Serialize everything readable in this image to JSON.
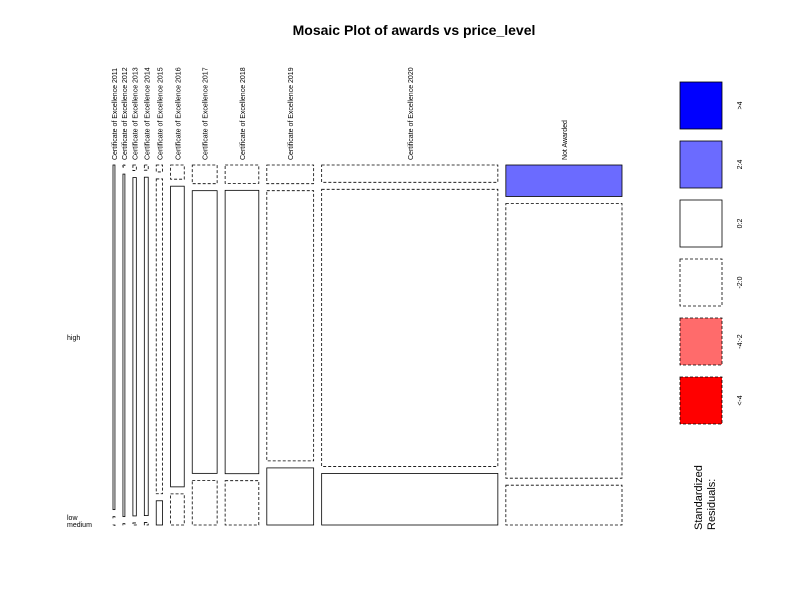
{
  "chart_data": {
    "type": "mosaic",
    "title": "Mosaic Plot of awards vs price_level",
    "x_variable": "awards",
    "y_variable": "price_level",
    "columns": [
      "Certificate of Excellence 2011",
      "Certificate of Excellence 2012",
      "Certificate of Excellence 2013",
      "Certificate of Excellence 2014",
      "Certificate of Excellence 2015",
      "Certificate of Excellence 2016",
      "Certificate of Excellence 2017",
      "Certificate of Excellence 2018",
      "Certificate of Excellence 2019",
      "Certificate of Excellence 2020",
      "Not Awarded"
    ],
    "column_widths": [
      0.004,
      0.004,
      0.007,
      0.008,
      0.013,
      0.028,
      0.051,
      0.069,
      0.096,
      0.361,
      0.238
    ],
    "rows": [
      "high",
      "low",
      "medium"
    ],
    "row_shares": [
      [
        0.996,
        0.0,
        0.004
      ],
      [
        0.006,
        0.004,
        0.99
      ],
      [
        0.016,
        0.006,
        0.978
      ],
      [
        0.015,
        0.007,
        0.978
      ],
      [
        0.02,
        0.07,
        0.91
      ],
      [
        0.041,
        0.09,
        0.869
      ],
      [
        0.054,
        0.129,
        0.817
      ],
      [
        0.053,
        0.128,
        0.819
      ],
      [
        0.054,
        0.165,
        0.781
      ],
      [
        0.05,
        0.149,
        0.801
      ],
      [
        0.091,
        0.115,
        0.794
      ]
    ],
    "residual_class": [
      [
        "0:2",
        "-2:0",
        "-2:0"
      ],
      [
        "-2:0",
        "-2:0",
        "0:2"
      ],
      [
        "-2:0",
        "-2:0",
        "0:2"
      ],
      [
        "-2:0",
        "-2:0",
        "0:2"
      ],
      [
        "-2:0",
        "0:2",
        "-2:0"
      ],
      [
        "-2:0",
        "-2:0",
        "0:2"
      ],
      [
        "-2:0",
        "-2:0",
        "0:2"
      ],
      [
        "-2:0",
        "-2:0",
        "0:2"
      ],
      [
        "-2:0",
        "0:2",
        "-2:0"
      ],
      [
        "-2:0",
        "0:2",
        "-2:0"
      ],
      [
        "2:4",
        "-2:0",
        "-2:0"
      ]
    ],
    "legend": {
      "title_lines": [
        "Standardized",
        "Residuals:"
      ],
      "items": [
        {
          "label": ">4",
          "fill": "#0000ff",
          "dashed": false
        },
        {
          "label": "2:4",
          "fill": "#6b6bff",
          "dashed": false
        },
        {
          "label": "0:2",
          "fill": "#ffffff",
          "dashed": false
        },
        {
          "label": "-2:0",
          "fill": "#ffffff",
          "dashed": true
        },
        {
          "label": "-4:-2",
          "fill": "#ff6b6b",
          "dashed": true
        },
        {
          "label": "<-4",
          "fill": "#ff0000",
          "dashed": true
        }
      ]
    },
    "fills": {
      ">4": "#0000ff",
      "2:4": "#6b6bff",
      "0:2": "#ffffff",
      "-2:0": "#ffffff",
      "-4:-2": "#ff6b6b",
      "<-4": "#ff0000"
    }
  }
}
